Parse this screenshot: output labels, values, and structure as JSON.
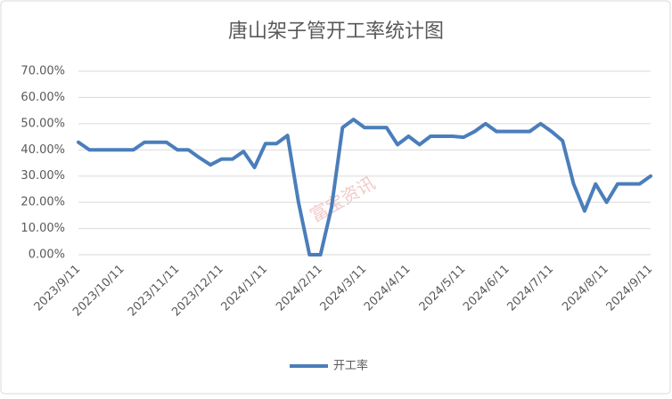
{
  "chart_data": {
    "type": "line",
    "title": "唐山架子管开工率统计图",
    "watermark": "富宝资讯",
    "categories": [
      "2023/9/11",
      null,
      null,
      null,
      "2023/10/11",
      null,
      null,
      null,
      null,
      "2023/11/11",
      null,
      null,
      null,
      "2023/12/11",
      null,
      null,
      null,
      "2024/1/11",
      null,
      null,
      null,
      null,
      "2024/2/11",
      null,
      null,
      null,
      "2024/3/11",
      null,
      null,
      null,
      "2024/4/11",
      null,
      null,
      null,
      null,
      "2024/5/11",
      null,
      null,
      null,
      "2024/6/11",
      null,
      null,
      null,
      "2024/7/11",
      null,
      null,
      null,
      null,
      "2024/8/11",
      null,
      null,
      null,
      "2024/9/11"
    ],
    "series": [
      {
        "name": "开工率",
        "color": "#4a7ebb",
        "values": [
          42.9,
          40,
          40,
          40,
          40,
          40,
          42.9,
          42.9,
          42.9,
          40,
          40,
          37,
          34.3,
          36.5,
          36.5,
          39.4,
          33.3,
          42.4,
          42.4,
          45.5,
          20,
          0,
          0,
          18,
          48.5,
          51.6,
          48.5,
          48.5,
          48.5,
          42,
          45.2,
          42,
          45.2,
          45.2,
          45.2,
          44.8,
          47,
          50,
          47,
          47,
          47,
          47,
          50,
          47,
          43.5,
          27,
          16.7,
          27,
          20,
          27,
          27,
          27,
          30
        ]
      }
    ],
    "ylim": [
      0,
      70
    ],
    "yticks": [
      {
        "value": 0,
        "label": "0.00%"
      },
      {
        "value": 10,
        "label": "10.00%"
      },
      {
        "value": 20,
        "label": "20.00%"
      },
      {
        "value": 30,
        "label": "30.00%"
      },
      {
        "value": 40,
        "label": "40.00%"
      },
      {
        "value": 50,
        "label": "50.00%"
      },
      {
        "value": 60,
        "label": "60.00%"
      },
      {
        "value": 70,
        "label": "70.00%"
      }
    ],
    "grid": true,
    "legend": "bottom"
  }
}
